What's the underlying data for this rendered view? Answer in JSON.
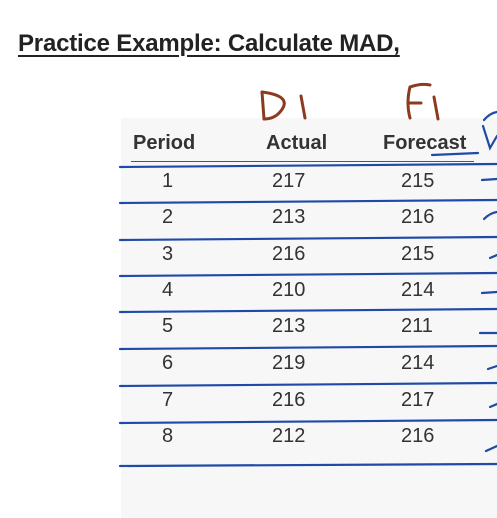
{
  "heading": "Practice Example: Calculate MAD,",
  "table": {
    "headers": {
      "period": "Period",
      "actual": "Actual",
      "forecast": "Forecast"
    },
    "rows": [
      {
        "period": "1",
        "actual": "217",
        "forecast": "215"
      },
      {
        "period": "2",
        "actual": "213",
        "forecast": "216"
      },
      {
        "period": "3",
        "actual": "216",
        "forecast": "215"
      },
      {
        "period": "4",
        "actual": "210",
        "forecast": "214"
      },
      {
        "period": "5",
        "actual": "213",
        "forecast": "211"
      },
      {
        "period": "6",
        "actual": "219",
        "forecast": "214"
      },
      {
        "period": "7",
        "actual": "216",
        "forecast": "217"
      },
      {
        "period": "8",
        "actual": "212",
        "forecast": "216"
      }
    ]
  },
  "handwriting": {
    "actual_note": "D1",
    "forecast_note": "F1"
  },
  "colors": {
    "ink_blue": "#1f4aa6",
    "ink_brown": "#8b3b1e",
    "text": "#333333"
  }
}
